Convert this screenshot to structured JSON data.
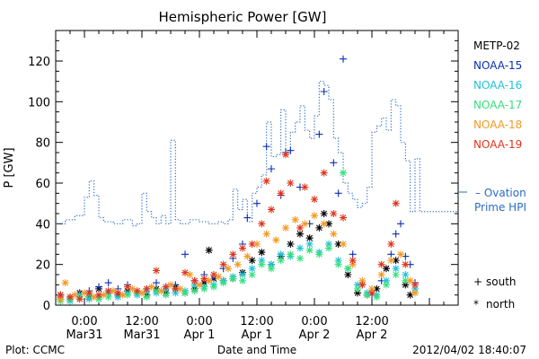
{
  "chart_data": {
    "type": "scatter",
    "title": "Hemispheric Power [GW]",
    "xlabel": "Date and Time",
    "ylabel": "P [GW]",
    "ylim": [
      0,
      135
    ],
    "xlim_hours": [
      -6,
      78
    ],
    "yticks": [
      0,
      20,
      40,
      60,
      80,
      100,
      120
    ],
    "xticks": [
      {
        "h": 0,
        "top": "0:00",
        "bottom": "Mar31"
      },
      {
        "h": 12,
        "top": "12:00",
        "bottom": "Mar31"
      },
      {
        "h": 24,
        "top": "0:00",
        "bottom": "Apr 1"
      },
      {
        "h": 36,
        "top": "12:00",
        "bottom": "Apr 1"
      },
      {
        "h": 48,
        "top": "0:00",
        "bottom": "Apr 2"
      },
      {
        "h": 60,
        "top": "12:00",
        "bottom": "Apr 2"
      }
    ],
    "grid": false,
    "legend_position": "right",
    "series": [
      {
        "name": "METP-02",
        "color": "#000000",
        "marker": "asterisk",
        "points": [
          [
            -5,
            5
          ],
          [
            -3,
            3
          ],
          [
            -1,
            6
          ],
          [
            1,
            4
          ],
          [
            3,
            8
          ],
          [
            5,
            6
          ],
          [
            7,
            5
          ],
          [
            9,
            7
          ],
          [
            11,
            6
          ],
          [
            13,
            5
          ],
          [
            15,
            8
          ],
          [
            17,
            6
          ],
          [
            19,
            9
          ],
          [
            21,
            6
          ],
          [
            23,
            8
          ],
          [
            25,
            11
          ],
          [
            26,
            27
          ],
          [
            27,
            13
          ],
          [
            29,
            12
          ],
          [
            31,
            13
          ],
          [
            33,
            16
          ],
          [
            35,
            22
          ],
          [
            37,
            26
          ],
          [
            39,
            20
          ],
          [
            41,
            24
          ],
          [
            43,
            30
          ],
          [
            45,
            35
          ],
          [
            47,
            33
          ],
          [
            49,
            38
          ],
          [
            50,
            45
          ],
          [
            51,
            40
          ],
          [
            53,
            30
          ],
          [
            55,
            15
          ],
          [
            57,
            6
          ],
          [
            59,
            5
          ],
          [
            61,
            8
          ],
          [
            63,
            18
          ],
          [
            65,
            22
          ],
          [
            67,
            10
          ],
          [
            68,
            5
          ]
        ]
      },
      {
        "name": "NOAA-15",
        "color": "#0a2fb4",
        "marker": "plus",
        "points": [
          [
            -5,
            3
          ],
          [
            -3,
            4
          ],
          [
            -1,
            6
          ],
          [
            1,
            7
          ],
          [
            3,
            9
          ],
          [
            5,
            11
          ],
          [
            7,
            8
          ],
          [
            9,
            10
          ],
          [
            11,
            6
          ],
          [
            13,
            8
          ],
          [
            15,
            11
          ],
          [
            17,
            9
          ],
          [
            19,
            10
          ],
          [
            21,
            25
          ],
          [
            23,
            12
          ],
          [
            25,
            15
          ],
          [
            27,
            13
          ],
          [
            29,
            18
          ],
          [
            31,
            23
          ],
          [
            33,
            30
          ],
          [
            34,
            43
          ],
          [
            36,
            50
          ],
          [
            38,
            78
          ],
          [
            39,
            67
          ],
          [
            41,
            54
          ],
          [
            42,
            75
          ],
          [
            43,
            76
          ],
          [
            45,
            58
          ],
          [
            47,
            40
          ],
          [
            49,
            84
          ],
          [
            50,
            105
          ],
          [
            52,
            70
          ],
          [
            53,
            55
          ],
          [
            54,
            121
          ],
          [
            56,
            25
          ],
          [
            58,
            10
          ],
          [
            60,
            5
          ],
          [
            62,
            12
          ],
          [
            64,
            25
          ],
          [
            65,
            35
          ],
          [
            66,
            40
          ],
          [
            67,
            24
          ],
          [
            68,
            20
          ],
          [
            69,
            11
          ]
        ]
      },
      {
        "name": "NOAA-16",
        "color": "#1fc3d6",
        "marker": "asterisk",
        "points": [
          [
            -5,
            4
          ],
          [
            -3,
            2
          ],
          [
            -1,
            5
          ],
          [
            1,
            3
          ],
          [
            3,
            4
          ],
          [
            5,
            6
          ],
          [
            7,
            4
          ],
          [
            9,
            6
          ],
          [
            11,
            5
          ],
          [
            13,
            7
          ],
          [
            15,
            6
          ],
          [
            17,
            8
          ],
          [
            19,
            6
          ],
          [
            21,
            7
          ],
          [
            23,
            10
          ],
          [
            25,
            9
          ],
          [
            27,
            10
          ],
          [
            29,
            12
          ],
          [
            31,
            14
          ],
          [
            33,
            15
          ],
          [
            35,
            18
          ],
          [
            37,
            22
          ],
          [
            39,
            20
          ],
          [
            41,
            25
          ],
          [
            43,
            24
          ],
          [
            45,
            28
          ],
          [
            47,
            30
          ],
          [
            49,
            26
          ],
          [
            51,
            30
          ],
          [
            53,
            22
          ],
          [
            55,
            18
          ],
          [
            57,
            10
          ],
          [
            59,
            6
          ],
          [
            61,
            5
          ],
          [
            63,
            12
          ],
          [
            65,
            18
          ],
          [
            67,
            15
          ],
          [
            69,
            8
          ]
        ]
      },
      {
        "name": "NOAA-17",
        "color": "#33e07a",
        "marker": "asterisk",
        "points": [
          [
            -5,
            2
          ],
          [
            -3,
            3
          ],
          [
            -1,
            4
          ],
          [
            1,
            5
          ],
          [
            3,
            3
          ],
          [
            5,
            4
          ],
          [
            7,
            6
          ],
          [
            9,
            5
          ],
          [
            11,
            6
          ],
          [
            13,
            4
          ],
          [
            15,
            7
          ],
          [
            17,
            5
          ],
          [
            19,
            8
          ],
          [
            21,
            6
          ],
          [
            23,
            7
          ],
          [
            25,
            8
          ],
          [
            27,
            9
          ],
          [
            29,
            11
          ],
          [
            31,
            13
          ],
          [
            33,
            12
          ],
          [
            35,
            15
          ],
          [
            37,
            20
          ],
          [
            39,
            18
          ],
          [
            41,
            22
          ],
          [
            43,
            25
          ],
          [
            45,
            23
          ],
          [
            47,
            27
          ],
          [
            49,
            25
          ],
          [
            51,
            28
          ],
          [
            53,
            20
          ],
          [
            54,
            65
          ],
          [
            55,
            18
          ],
          [
            57,
            8
          ],
          [
            59,
            5
          ],
          [
            61,
            4
          ],
          [
            63,
            10
          ],
          [
            65,
            15
          ],
          [
            67,
            12
          ],
          [
            69,
            6
          ]
        ]
      },
      {
        "name": "NOAA-18",
        "color": "#f29a22",
        "marker": "asterisk",
        "points": [
          [
            -5,
            3
          ],
          [
            -4,
            11
          ],
          [
            -2,
            5
          ],
          [
            0,
            6
          ],
          [
            2,
            4
          ],
          [
            4,
            5
          ],
          [
            6,
            7
          ],
          [
            8,
            5
          ],
          [
            10,
            8
          ],
          [
            12,
            6
          ],
          [
            14,
            9
          ],
          [
            16,
            7
          ],
          [
            18,
            10
          ],
          [
            20,
            8
          ],
          [
            22,
            15
          ],
          [
            24,
            10
          ],
          [
            26,
            12
          ],
          [
            28,
            14
          ],
          [
            30,
            18
          ],
          [
            32,
            20
          ],
          [
            34,
            24
          ],
          [
            36,
            30
          ],
          [
            38,
            35
          ],
          [
            40,
            32
          ],
          [
            42,
            38
          ],
          [
            44,
            42
          ],
          [
            46,
            40
          ],
          [
            48,
            44
          ],
          [
            50,
            40
          ],
          [
            52,
            35
          ],
          [
            54,
            30
          ],
          [
            56,
            20
          ],
          [
            58,
            12
          ],
          [
            60,
            8
          ],
          [
            62,
            15
          ],
          [
            64,
            22
          ],
          [
            66,
            25
          ],
          [
            68,
            12
          ],
          [
            69,
            6
          ]
        ]
      },
      {
        "name": "NOAA-19",
        "color": "#e0341c",
        "marker": "asterisk",
        "points": [
          [
            -5,
            5
          ],
          [
            -3,
            4
          ],
          [
            -1,
            3
          ],
          [
            1,
            6
          ],
          [
            3,
            5
          ],
          [
            5,
            7
          ],
          [
            7,
            6
          ],
          [
            9,
            9
          ],
          [
            11,
            7
          ],
          [
            13,
            8
          ],
          [
            15,
            17
          ],
          [
            17,
            9
          ],
          [
            19,
            8
          ],
          [
            21,
            16
          ],
          [
            23,
            12
          ],
          [
            25,
            13
          ],
          [
            27,
            15
          ],
          [
            29,
            20
          ],
          [
            31,
            25
          ],
          [
            33,
            28
          ],
          [
            35,
            30
          ],
          [
            37,
            40
          ],
          [
            38,
            61
          ],
          [
            39,
            47
          ],
          [
            41,
            55
          ],
          [
            42,
            74
          ],
          [
            43,
            60
          ],
          [
            45,
            38
          ],
          [
            46,
            58
          ],
          [
            48,
            52
          ],
          [
            50,
            65
          ],
          [
            52,
            45
          ],
          [
            54,
            43
          ],
          [
            56,
            22
          ],
          [
            58,
            10
          ],
          [
            60,
            6
          ],
          [
            62,
            20
          ],
          [
            64,
            30
          ],
          [
            65,
            50
          ],
          [
            67,
            20
          ],
          [
            69,
            10
          ]
        ]
      }
    ],
    "line_series": {
      "name": "Ovation Prime HPI",
      "label_lines": [
        "– Ovation",
        "Prime HPI"
      ],
      "color": "#2b6cc4",
      "step": true,
      "points": [
        [
          -6,
          40
        ],
        [
          -4,
          42
        ],
        [
          -2,
          44
        ],
        [
          0,
          53
        ],
        [
          1,
          61
        ],
        [
          2,
          54
        ],
        [
          3,
          43
        ],
        [
          4,
          41
        ],
        [
          6,
          40
        ],
        [
          8,
          42
        ],
        [
          10,
          39
        ],
        [
          11,
          40
        ],
        [
          12,
          55
        ],
        [
          13,
          46
        ],
        [
          14,
          43
        ],
        [
          15,
          40
        ],
        [
          16,
          44
        ],
        [
          17,
          40
        ],
        [
          18,
          81
        ],
        [
          19,
          42
        ],
        [
          20,
          40
        ],
        [
          22,
          42
        ],
        [
          24,
          41
        ],
        [
          26,
          40
        ],
        [
          28,
          41
        ],
        [
          29,
          40
        ],
        [
          30,
          42
        ],
        [
          31,
          57
        ],
        [
          32,
          47
        ],
        [
          33,
          52
        ],
        [
          34,
          41
        ],
        [
          35,
          55
        ],
        [
          36,
          58
        ],
        [
          37,
          64
        ],
        [
          38,
          90
        ],
        [
          39,
          73
        ],
        [
          40,
          74
        ],
        [
          41,
          96
        ],
        [
          42,
          75
        ],
        [
          43,
          85
        ],
        [
          44,
          90
        ],
        [
          45,
          98
        ],
        [
          46,
          86
        ],
        [
          47,
          82
        ],
        [
          48,
          93
        ],
        [
          49,
          110
        ],
        [
          50,
          108
        ],
        [
          51,
          101
        ],
        [
          52,
          82
        ],
        [
          53,
          75
        ],
        [
          54,
          60
        ],
        [
          55,
          55
        ],
        [
          56,
          52
        ],
        [
          57,
          48
        ],
        [
          58,
          50
        ],
        [
          59,
          58
        ],
        [
          60,
          85
        ],
        [
          61,
          88
        ],
        [
          62,
          92
        ],
        [
          63,
          86
        ],
        [
          64,
          101
        ],
        [
          65,
          98
        ],
        [
          66,
          80
        ],
        [
          67,
          71
        ],
        [
          68,
          46
        ],
        [
          69,
          72
        ],
        [
          70,
          46
        ]
      ]
    }
  },
  "legend": {
    "symbol_south": "+",
    "label_south": "south",
    "symbol_north": "*",
    "label_north": "north"
  },
  "footer": {
    "plot_source": "Plot: CCMC",
    "timestamp": "2012/04/02 18:40:07"
  }
}
